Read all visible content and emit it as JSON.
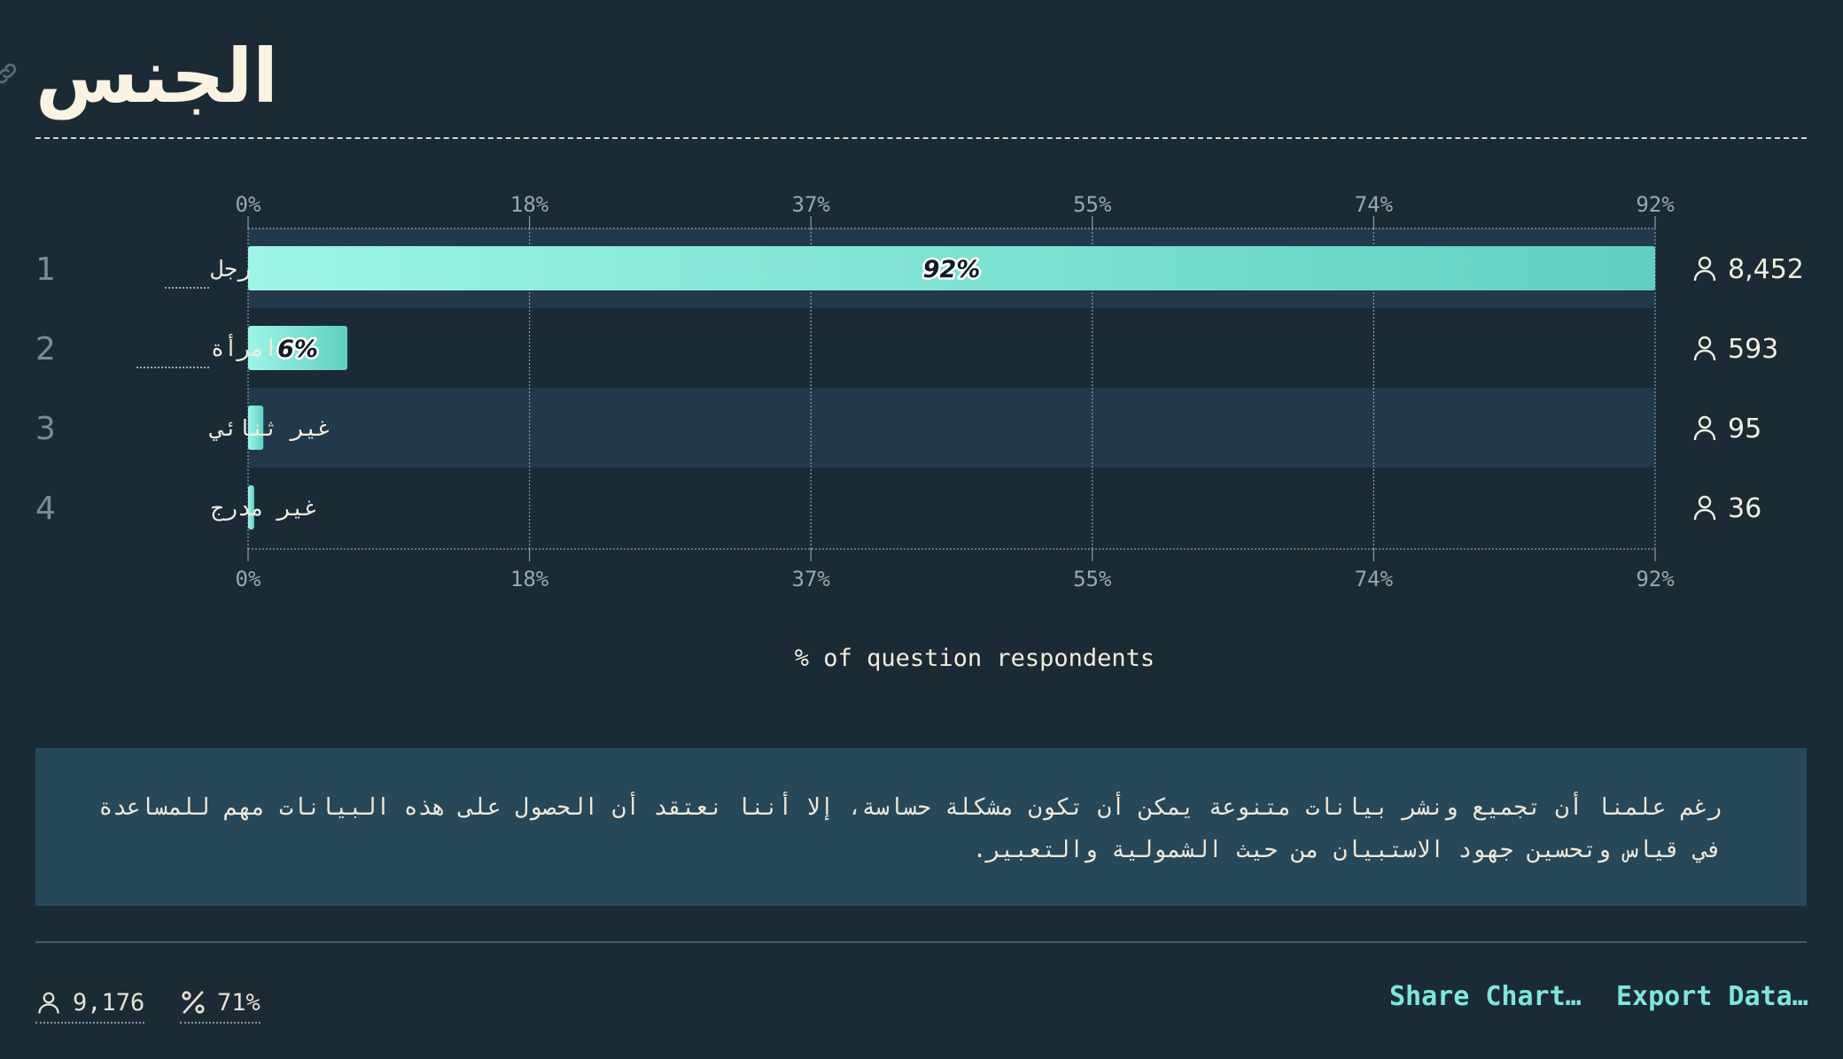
{
  "page": {
    "title": "الجنس"
  },
  "chart_data": {
    "type": "bar",
    "orientation": "horizontal",
    "categories": [
      "رجل",
      "امرأة",
      "غير ثنائي",
      "غير مدرج"
    ],
    "ranks": [
      "1",
      "2",
      "3",
      "4"
    ],
    "values": [
      92.1,
      6.5,
      1.0,
      0.4
    ],
    "bar_labels": [
      "92%",
      "6%",
      "",
      ""
    ],
    "counts": [
      "8,452",
      "593",
      "95",
      "36"
    ],
    "xticks": [
      "0%",
      "18%",
      "37%",
      "55%",
      "74%",
      "92%"
    ],
    "xlim": [
      0,
      92.1
    ],
    "xlabel": "% of question respondents",
    "grid": true,
    "colors": {
      "bar_start": "#9ef5e6",
      "bar_end": "#5fd0c0",
      "band_alt": "#21394a",
      "grid": "#8f9ca3"
    }
  },
  "note": {
    "text": "رغم علمنا أن تجميع ونشر بيانات متنوعة يمكن أن تكون مشكلة حساسة، إلا أننا نعتقد أن الحصول على هذه البيانات مهم للمساعدة في قياس وتحسين جهود الاستبيان من حيث الشمولية والتعبير."
  },
  "footer": {
    "respondents": "9,176",
    "percent": "71%",
    "share_label": "Share Chart…",
    "export_label": "Export Data…",
    "icons": [
      "person-icon",
      "percent-icon"
    ]
  }
}
